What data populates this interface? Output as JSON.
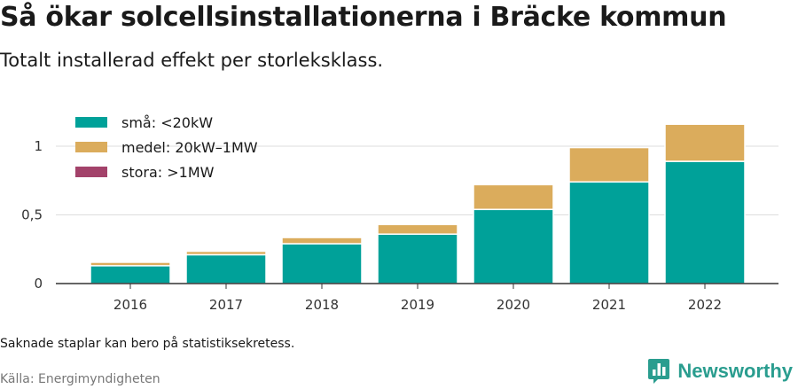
{
  "header": {
    "title": "Så ökar solcellsinstallationerna i Bräcke kommun",
    "subtitle": "Totalt installerad effekt per storleksklass."
  },
  "footer": {
    "note": "Saknade staplar kan bero på statistiksekretess.",
    "source": "Källa: Energimyndigheten",
    "brand": "Newsworthy",
    "brand_icon": "bar-chart-logo-icon"
  },
  "colors": {
    "small": "#00a199",
    "medium": "#dbac5c",
    "large": "#a3426a",
    "grid": "#dddddd",
    "axis": "#333333",
    "brand": "#2a9d8f"
  },
  "chart_data": {
    "type": "bar",
    "stacked": true,
    "categories": [
      "2016",
      "2017",
      "2018",
      "2019",
      "2020",
      "2021",
      "2022"
    ],
    "series": [
      {
        "name": "små: <20kW",
        "values": [
          0.13,
          0.21,
          0.29,
          0.36,
          0.54,
          0.74,
          0.89
        ]
      },
      {
        "name": "medel: 20kW–1MW",
        "values": [
          0.025,
          0.025,
          0.045,
          0.07,
          0.18,
          0.25,
          0.27
        ]
      },
      {
        "name": "stora: >1MW",
        "values": [
          0,
          0,
          0,
          0,
          0,
          0,
          0
        ]
      }
    ],
    "ylim": [
      0,
      1.2
    ],
    "yticks": [
      0,
      0.5,
      1
    ],
    "ytick_labels": [
      "0",
      "0,5",
      "1"
    ],
    "grid": true,
    "legend": "top-left",
    "title": "",
    "xlabel": "",
    "ylabel": ""
  }
}
